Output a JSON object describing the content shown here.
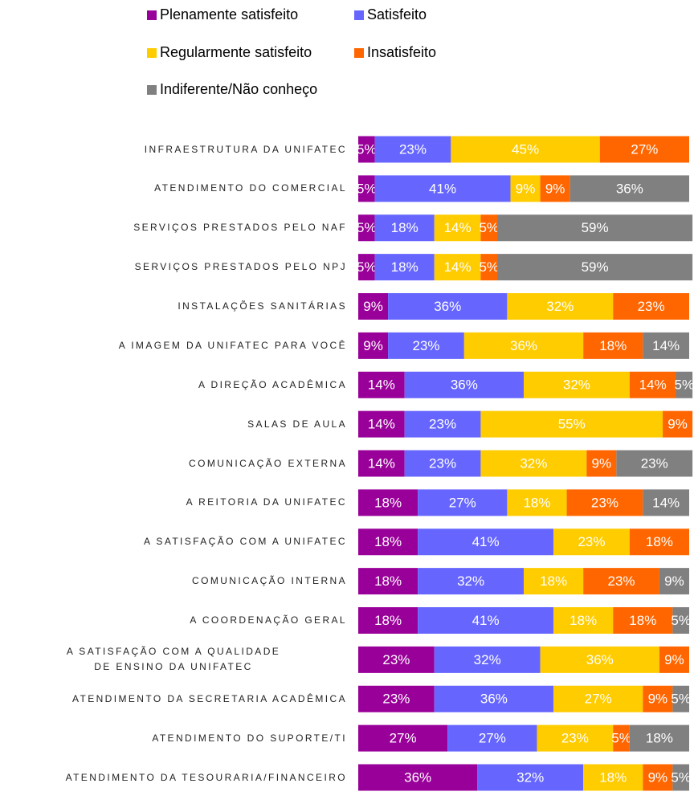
{
  "chart_data": {
    "type": "stacked-bar-horizontal",
    "categories": [
      "INFRAESTRUTURA DA UNIFATEC",
      "ATENDIMENTO DO COMERCIAL",
      "SERVIÇOS PRESTADOS PELO NAF",
      "SERVIÇOS PRESTADOS PELO NPJ",
      "INSTALAÇÕES SANITÁRIAS",
      "A IMAGEM DA UNIFATEC PARA VOCÊ",
      "A DIREÇÃO ACADÊMICA",
      "SALAS DE AULA",
      "COMUNICAÇÃO EXTERNA",
      "A REITORIA DA UNIFATEC",
      "A SATISFAÇÃO COM A UNIFATEC",
      "COMUNICAÇÃO INTERNA",
      "A COORDENAÇÃO GERAL",
      "A SATISFAÇÃO COM A QUALIDADE DE ENSINO DA UNIFATEC",
      "ATENDIMENTO DA SECRETARIA ACADÊMICA",
      "ATENDIMENTO DO SUPORTE/TI",
      "ATENDIMENTO DA TESOURARIA/FINANCEIRO"
    ],
    "series": [
      {
        "name": "Plenamente satisfeito",
        "color": "#990099",
        "values": [
          5,
          5,
          5,
          5,
          9,
          9,
          14,
          14,
          14,
          18,
          18,
          18,
          18,
          23,
          23,
          27,
          36
        ],
        "value_labels": [
          "5%",
          "5%",
          "5%",
          "5%",
          "9%",
          "9%",
          "14%",
          "14%",
          "14%",
          "18%",
          "18%",
          "18%",
          "18%",
          "23%",
          "23%",
          "27%",
          "36%"
        ]
      },
      {
        "name": "Satisfeito",
        "color": "#6666ff",
        "values": [
          23,
          41,
          18,
          18,
          36,
          23,
          36,
          23,
          23,
          27,
          41,
          32,
          41,
          32,
          36,
          27,
          32
        ],
        "value_labels": [
          "23%",
          "41%",
          "18%",
          "18%",
          "36%",
          "23%",
          "36%",
          "23%",
          "23%",
          "27%",
          "41%",
          "32%",
          "41%",
          "32%",
          "36%",
          "27%",
          "32%"
        ]
      },
      {
        "name": "Regularmente satisfeito",
        "color": "#ffcc00",
        "values": [
          45,
          9,
          14,
          14,
          32,
          36,
          32,
          55,
          32,
          18,
          23,
          18,
          18,
          36,
          27,
          23,
          18
        ],
        "value_labels": [
          "45%",
          "9%",
          "14%",
          "14%",
          "32%",
          "36%",
          "32%",
          "55%",
          "32%",
          "18%",
          "23%",
          "18%",
          "18%",
          "36%",
          "27%",
          "23%",
          "18%"
        ]
      },
      {
        "name": "Insatisfeito",
        "color": "#ff6600",
        "values": [
          27,
          9,
          5,
          5,
          23,
          18,
          14,
          9,
          9,
          23,
          18,
          23,
          18,
          9,
          9,
          5,
          9
        ],
        "value_labels": [
          "27%",
          "9%",
          "5%",
          "5%",
          "23%",
          "18%",
          "14%",
          "9%",
          "9%",
          "23%",
          "18%",
          "23%",
          "18%",
          "9%",
          "9%",
          "5%",
          "9%"
        ]
      },
      {
        "name": "Indiferente/Não conheço",
        "color": "#808080",
        "values": [
          0,
          36,
          59,
          59,
          0,
          14,
          5,
          0,
          23,
          14,
          0,
          9,
          5,
          0,
          5,
          18,
          5
        ],
        "value_labels": [
          null,
          "36%",
          "59%",
          "59%",
          null,
          "14%",
          "5%",
          null,
          "23%",
          "14%",
          null,
          "9%",
          "5%",
          null,
          "5%",
          "18%",
          "5%"
        ]
      }
    ],
    "xlim": [
      0,
      100
    ]
  }
}
